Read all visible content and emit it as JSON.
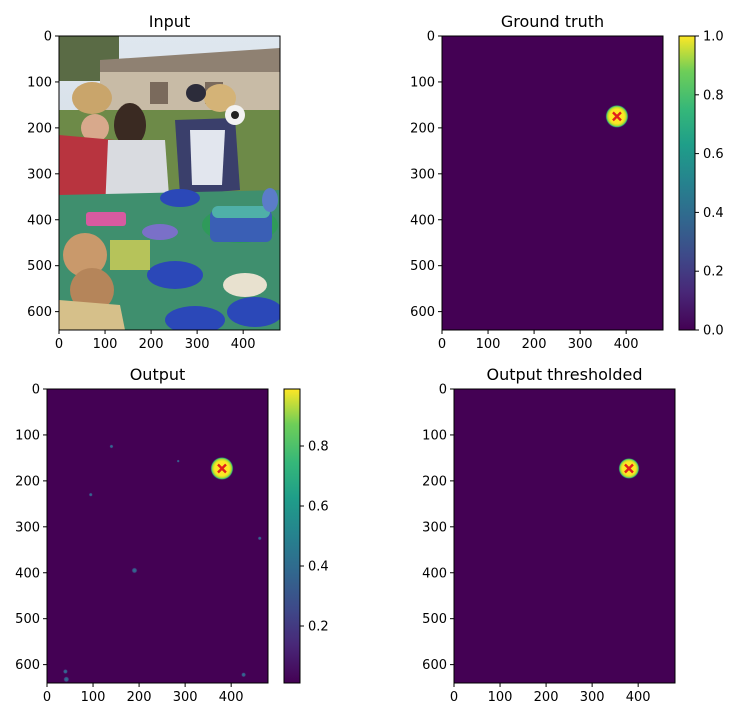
{
  "chart_data": [
    {
      "type": "heatmap",
      "title": "Input",
      "content": "photo",
      "photo_description_hidden": false,
      "xticks": [
        "0",
        "100",
        "200",
        "300",
        "400"
      ],
      "yticks": [
        "0",
        "100",
        "200",
        "300",
        "400",
        "500",
        "600"
      ],
      "x_range": [
        0,
        480
      ],
      "y_range": [
        0,
        640
      ],
      "colorbar": null
    },
    {
      "type": "heatmap",
      "title": "Ground truth",
      "content": "map",
      "background_color": "#440154",
      "spots": [
        {
          "x": 380,
          "y": 175,
          "r": 22,
          "value": 1.0
        }
      ],
      "marker": {
        "x": 380,
        "y": 175,
        "symbol": "x",
        "color": "#e0201b"
      },
      "xticks": [
        "0",
        "100",
        "200",
        "300",
        "400"
      ],
      "yticks": [
        "0",
        "100",
        "200",
        "300",
        "400",
        "500",
        "600"
      ],
      "x_range": [
        0,
        480
      ],
      "y_range": [
        0,
        640
      ],
      "colorbar": {
        "range": [
          0,
          1
        ],
        "ticks": [
          "0.0",
          "0.2",
          "0.4",
          "0.6",
          "0.8",
          "1.0"
        ],
        "tick_values": [
          0,
          0.2,
          0.4,
          0.6,
          0.8,
          1.0
        ]
      }
    },
    {
      "type": "heatmap",
      "title": "Output",
      "content": "map",
      "background_color": "#440154",
      "spots": [
        {
          "x": 380,
          "y": 173,
          "r": 22,
          "value": 1.0
        },
        {
          "x": 140,
          "y": 125,
          "r": 4,
          "value": 0.3
        },
        {
          "x": 95,
          "y": 230,
          "r": 4,
          "value": 0.25
        },
        {
          "x": 190,
          "y": 395,
          "r": 6,
          "value": 0.4
        },
        {
          "x": 462,
          "y": 325,
          "r": 4,
          "value": 0.3
        },
        {
          "x": 285,
          "y": 157,
          "r": 3,
          "value": 0.2
        },
        {
          "x": 40,
          "y": 615,
          "r": 5,
          "value": 0.45
        },
        {
          "x": 42,
          "y": 632,
          "r": 6,
          "value": 0.55
        },
        {
          "x": 427,
          "y": 622,
          "r": 5,
          "value": 0.45
        }
      ],
      "marker": {
        "x": 380,
        "y": 173,
        "symbol": "x",
        "color": "#e0201b"
      },
      "xticks": [
        "0",
        "100",
        "200",
        "300",
        "400"
      ],
      "yticks": [
        "0",
        "100",
        "200",
        "300",
        "400",
        "500",
        "600"
      ],
      "x_range": [
        0,
        480
      ],
      "y_range": [
        0,
        640
      ],
      "colorbar": {
        "range": [
          0.01,
          0.99
        ],
        "ticks": [
          "0.2",
          "0.4",
          "0.6",
          "0.8"
        ],
        "tick_values": [
          0.2,
          0.4,
          0.6,
          0.8
        ]
      }
    },
    {
      "type": "heatmap",
      "title": "Output thresholded",
      "content": "map",
      "background_color": "#440154",
      "spots": [
        {
          "x": 380,
          "y": 173,
          "r": 20,
          "value": 1.0
        }
      ],
      "marker": {
        "x": 380,
        "y": 173,
        "symbol": "x",
        "color": "#e0201b"
      },
      "xticks": [
        "0",
        "100",
        "200",
        "300",
        "400"
      ],
      "yticks": [
        "0",
        "100",
        "200",
        "300",
        "400",
        "500",
        "600"
      ],
      "x_range": [
        0,
        480
      ],
      "y_range": [
        0,
        640
      ],
      "colorbar": null
    }
  ],
  "colors": {
    "viridis_low": "#440154",
    "viridis_mid": "#21918c",
    "viridis_high": "#fde725",
    "marker": "#e0201b"
  }
}
